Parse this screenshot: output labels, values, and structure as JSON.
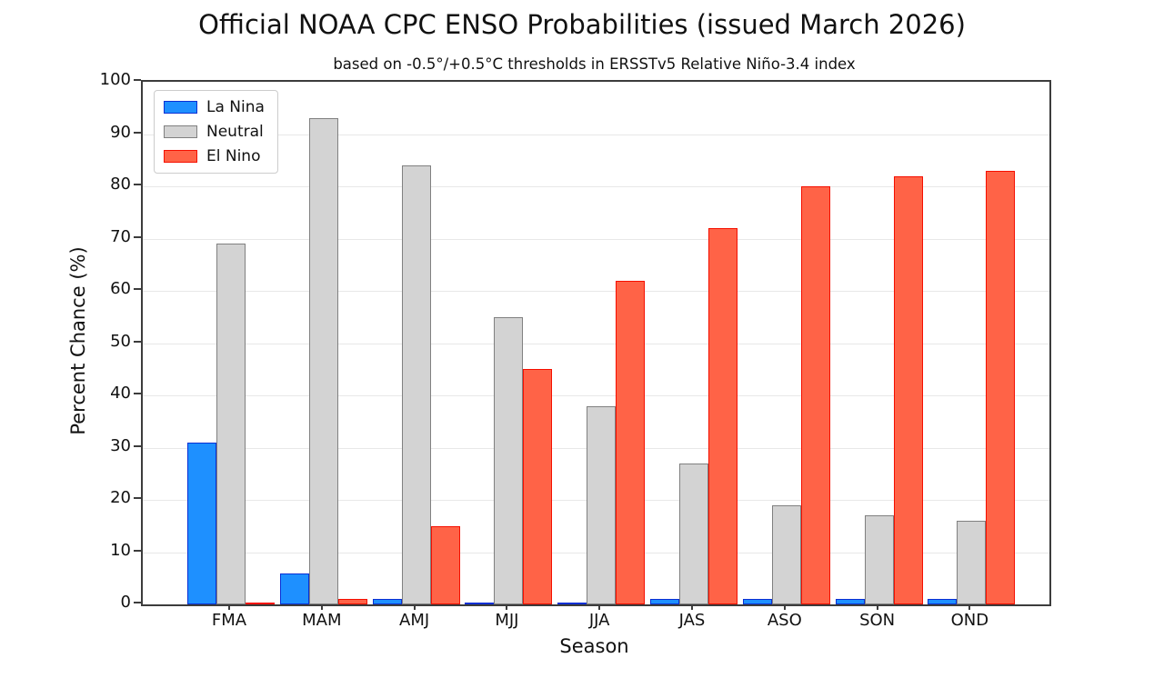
{
  "chart_data": {
    "type": "bar",
    "title": "Official NOAA CPC ENSO Probabilities (issued March 2026)",
    "subtitle": "based on -0.5°/+0.5°C thresholds in ERSSTv5 Relative Niño-3.4 index",
    "xlabel": "Season",
    "ylabel": "Percent Chance (%)",
    "ylim": [
      0,
      100
    ],
    "yticks": [
      0,
      10,
      20,
      30,
      40,
      50,
      60,
      70,
      80,
      90,
      100
    ],
    "grid": true,
    "legend_position": "upper-left",
    "categories": [
      "FMA",
      "MAM",
      "AMJ",
      "MJJ",
      "JJA",
      "JAS",
      "ASO",
      "SON",
      "OND"
    ],
    "series": [
      {
        "name": "La Nina",
        "fill_color": "#1e90ff",
        "edge_color": "#0a2fd4",
        "values": [
          31,
          6,
          1,
          0,
          0,
          1,
          1,
          1,
          1
        ]
      },
      {
        "name": "Neutral",
        "fill_color": "#d3d3d3",
        "edge_color": "#808080",
        "values": [
          69,
          93,
          84,
          55,
          38,
          27,
          19,
          17,
          16
        ]
      },
      {
        "name": "El Nino",
        "fill_color": "#ff6347",
        "edge_color": "#f50f00",
        "values": [
          0,
          1,
          15,
          45,
          62,
          72,
          80,
          82,
          83
        ]
      }
    ]
  }
}
